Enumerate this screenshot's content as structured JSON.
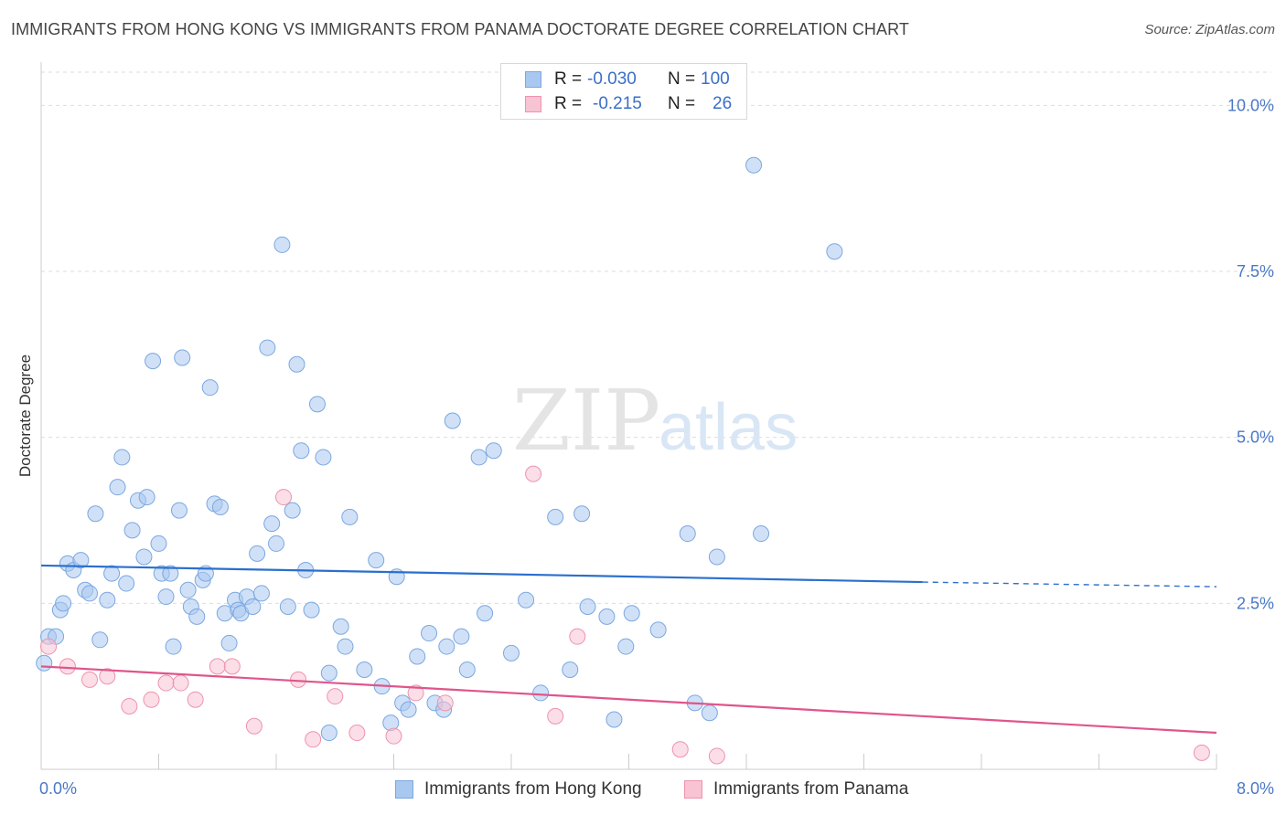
{
  "title": "IMMIGRANTS FROM HONG KONG VS IMMIGRANTS FROM PANAMA DOCTORATE DEGREE CORRELATION CHART",
  "source": "Source: ZipAtlas.com",
  "watermark": {
    "zip": "ZIP",
    "atlas": "atlas"
  },
  "legend": {
    "rows": [
      {
        "r_label": "R =",
        "r_value": "-0.030",
        "n_label": "N =",
        "n_value": "100",
        "color": "#a9c8f0",
        "border": "#7ba7e0"
      },
      {
        "r_label": "R =",
        "r_value": "-0.215",
        "n_label": "N =",
        "n_value": "26",
        "color": "#f8c3d3",
        "border": "#ee93ae"
      }
    ]
  },
  "bottom_legend": [
    {
      "label": "Immigrants from Hong Kong",
      "color": "#a9c8f0",
      "border": "#7ba7e0"
    },
    {
      "label": "Immigrants from Panama",
      "color": "#f8c3d3",
      "border": "#ee93ae"
    }
  ],
  "chart_data": {
    "type": "scatter",
    "xlabel": "",
    "ylabel": "Doctorate Degree",
    "xlim": [
      0,
      8
    ],
    "ylim": [
      0,
      10.5
    ],
    "x_tick_labels": [
      {
        "value": 0,
        "label": "0.0%"
      },
      {
        "value": 8,
        "label": "8.0%"
      }
    ],
    "y_tick_labels": [
      {
        "value": 2.5,
        "label": "2.5%"
      },
      {
        "value": 5.0,
        "label": "5.0%"
      },
      {
        "value": 7.5,
        "label": "7.5%"
      },
      {
        "value": 10.0,
        "label": "10.0%"
      }
    ],
    "grid": "horizontal dashed",
    "series": [
      {
        "name": "Immigrants from Hong Kong",
        "color": "#a9c8f0",
        "stroke": "#7ba7e0",
        "trend": {
          "x0": 0.0,
          "y0": 3.07,
          "x1": 6.0,
          "y1": 2.82,
          "x_dash_end": 8.0,
          "y_dash_end": 2.75,
          "color": "#2b6fce"
        },
        "points": [
          [
            0.02,
            1.6
          ],
          [
            0.05,
            2.0
          ],
          [
            0.1,
            2.0
          ],
          [
            0.13,
            2.4
          ],
          [
            0.15,
            2.5
          ],
          [
            0.18,
            3.1
          ],
          [
            0.22,
            3.0
          ],
          [
            0.27,
            3.15
          ],
          [
            0.3,
            2.7
          ],
          [
            0.33,
            2.65
          ],
          [
            0.37,
            3.85
          ],
          [
            0.4,
            1.95
          ],
          [
            0.45,
            2.55
          ],
          [
            0.48,
            2.95
          ],
          [
            0.52,
            4.25
          ],
          [
            0.55,
            4.7
          ],
          [
            0.58,
            2.8
          ],
          [
            0.62,
            3.6
          ],
          [
            0.66,
            4.05
          ],
          [
            0.7,
            3.2
          ],
          [
            0.72,
            4.1
          ],
          [
            0.76,
            6.15
          ],
          [
            0.8,
            3.4
          ],
          [
            0.82,
            2.95
          ],
          [
            0.85,
            2.6
          ],
          [
            0.88,
            2.95
          ],
          [
            0.9,
            1.85
          ],
          [
            0.94,
            3.9
          ],
          [
            0.96,
            6.2
          ],
          [
            1.0,
            2.7
          ],
          [
            1.02,
            2.45
          ],
          [
            1.06,
            2.3
          ],
          [
            1.1,
            2.85
          ],
          [
            1.12,
            2.95
          ],
          [
            1.15,
            5.75
          ],
          [
            1.18,
            4.0
          ],
          [
            1.22,
            3.95
          ],
          [
            1.25,
            2.35
          ],
          [
            1.28,
            1.9
          ],
          [
            1.32,
            2.55
          ],
          [
            1.34,
            2.4
          ],
          [
            1.36,
            2.35
          ],
          [
            1.4,
            2.6
          ],
          [
            1.44,
            2.45
          ],
          [
            1.47,
            3.25
          ],
          [
            1.5,
            2.65
          ],
          [
            1.54,
            6.35
          ],
          [
            1.57,
            3.7
          ],
          [
            1.6,
            3.4
          ],
          [
            1.64,
            7.9
          ],
          [
            1.68,
            2.45
          ],
          [
            1.71,
            3.9
          ],
          [
            1.74,
            6.1
          ],
          [
            1.77,
            4.8
          ],
          [
            1.8,
            3.0
          ],
          [
            1.84,
            2.4
          ],
          [
            1.88,
            5.5
          ],
          [
            1.92,
            4.7
          ],
          [
            1.96,
            1.45
          ],
          [
            2.04,
            2.15
          ],
          [
            2.07,
            1.85
          ],
          [
            2.1,
            3.8
          ],
          [
            2.2,
            1.5
          ],
          [
            2.28,
            3.15
          ],
          [
            2.32,
            1.25
          ],
          [
            2.38,
            0.7
          ],
          [
            2.42,
            2.9
          ],
          [
            2.46,
            1.0
          ],
          [
            2.5,
            0.9
          ],
          [
            2.56,
            1.7
          ],
          [
            2.64,
            2.05
          ],
          [
            2.68,
            1.0
          ],
          [
            2.74,
            0.9
          ],
          [
            2.76,
            1.85
          ],
          [
            2.8,
            5.25
          ],
          [
            2.86,
            2.0
          ],
          [
            2.9,
            1.5
          ],
          [
            2.98,
            4.7
          ],
          [
            3.02,
            2.35
          ],
          [
            3.08,
            4.8
          ],
          [
            3.2,
            1.75
          ],
          [
            3.3,
            2.55
          ],
          [
            3.4,
            1.15
          ],
          [
            3.5,
            3.8
          ],
          [
            3.6,
            1.5
          ],
          [
            3.68,
            3.85
          ],
          [
            3.72,
            2.45
          ],
          [
            3.85,
            2.3
          ],
          [
            3.98,
            1.85
          ],
          [
            4.02,
            2.35
          ],
          [
            4.2,
            2.1
          ],
          [
            4.4,
            3.55
          ],
          [
            4.45,
            1.0
          ],
          [
            4.55,
            0.85
          ],
          [
            4.6,
            3.2
          ],
          [
            4.85,
            9.1
          ],
          [
            4.9,
            3.55
          ],
          [
            5.4,
            7.8
          ],
          [
            3.9,
            0.75
          ],
          [
            1.96,
            0.55
          ]
        ]
      },
      {
        "name": "Immigrants from Panama",
        "color": "#f8c3d3",
        "stroke": "#ee93ae",
        "trend": {
          "x0": 0.0,
          "y0": 1.55,
          "x1": 8.0,
          "y1": 0.55,
          "color": "#e0558a"
        },
        "points": [
          [
            0.05,
            1.85
          ],
          [
            0.18,
            1.55
          ],
          [
            0.33,
            1.35
          ],
          [
            0.45,
            1.4
          ],
          [
            0.6,
            0.95
          ],
          [
            0.75,
            1.05
          ],
          [
            0.85,
            1.3
          ],
          [
            0.95,
            1.3
          ],
          [
            1.05,
            1.05
          ],
          [
            1.2,
            1.55
          ],
          [
            1.3,
            1.55
          ],
          [
            1.45,
            0.65
          ],
          [
            1.65,
            4.1
          ],
          [
            1.75,
            1.35
          ],
          [
            1.85,
            0.45
          ],
          [
            2.0,
            1.1
          ],
          [
            2.15,
            0.55
          ],
          [
            2.4,
            0.5
          ],
          [
            2.55,
            1.15
          ],
          [
            2.75,
            1.0
          ],
          [
            3.35,
            4.45
          ],
          [
            3.5,
            0.8
          ],
          [
            3.65,
            2.0
          ],
          [
            4.35,
            0.3
          ],
          [
            4.6,
            0.2
          ],
          [
            7.9,
            0.25
          ]
        ]
      }
    ]
  }
}
